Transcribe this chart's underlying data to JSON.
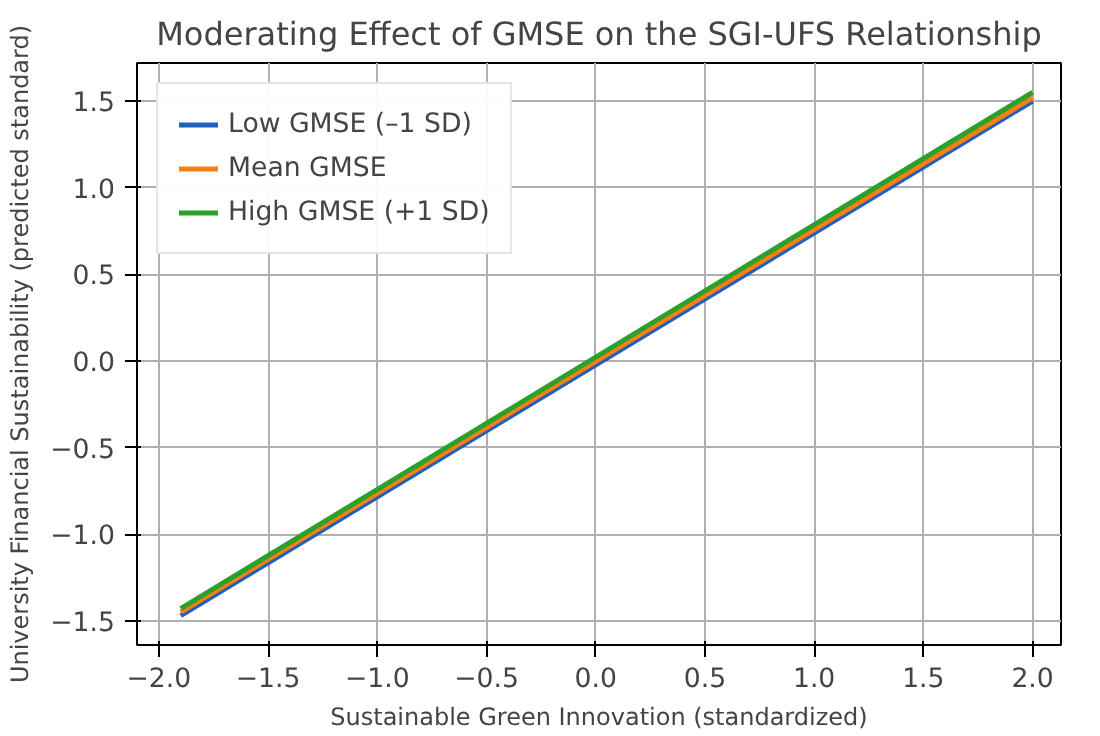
{
  "chart_data": {
    "type": "line",
    "title": "Moderating Effect of GMSE on the SGI-UFS Relationship",
    "xlabel": "Sustainable Green Innovation (standardized)",
    "ylabel": "University Financial Sustainability (predicted standard)",
    "x": [
      -1.9,
      2.0
    ],
    "series": [
      {
        "name": "Low GMSE (–1 SD)",
        "color": "#1f5fbf",
        "values": [
          -1.47,
          1.5
        ]
      },
      {
        "name": "Mean GMSE",
        "color": "#ff7f0e",
        "values": [
          -1.45,
          1.52
        ]
      },
      {
        "name": "High GMSE (+1 SD)",
        "color": "#2ca02c",
        "values": [
          -1.43,
          1.55
        ]
      }
    ],
    "xlim": [
      -2.1,
      2.13
    ],
    "ylim": [
      -1.64,
      1.72
    ],
    "xticks": [
      {
        "value": -2.0,
        "label": "−2.0"
      },
      {
        "value": -1.5,
        "label": "−1.5"
      },
      {
        "value": -1.0,
        "label": "−1.0"
      },
      {
        "value": -0.5,
        "label": "−0.5"
      },
      {
        "value": 0.0,
        "label": "0.0"
      },
      {
        "value": 0.5,
        "label": "0.5"
      },
      {
        "value": 1.0,
        "label": "1.0"
      },
      {
        "value": 1.5,
        "label": "1.5"
      },
      {
        "value": 2.0,
        "label": "2.0"
      }
    ],
    "yticks": [
      {
        "value": -1.5,
        "label": "−1.5"
      },
      {
        "value": -1.0,
        "label": "−1.0"
      },
      {
        "value": -0.5,
        "label": "−0.5"
      },
      {
        "value": 0.0,
        "label": "0.0"
      },
      {
        "value": 0.5,
        "label": "0.5"
      },
      {
        "value": 1.0,
        "label": "1.0"
      },
      {
        "value": 1.5,
        "label": "1.5"
      }
    ],
    "grid": true,
    "legend": "top left"
  }
}
